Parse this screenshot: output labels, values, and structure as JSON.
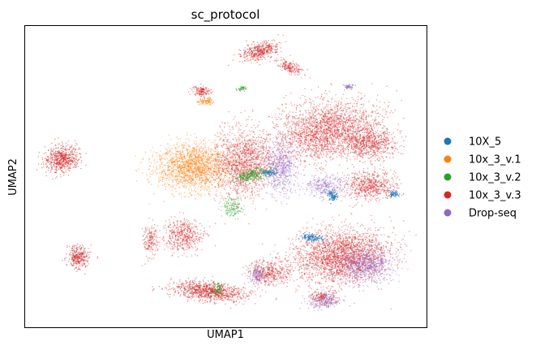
{
  "chart_data": {
    "type": "scatter",
    "title": "sc_protocol",
    "xlabel": "UMAP1",
    "ylabel": "UMAP2",
    "xticks": [],
    "yticks": [],
    "grid": false,
    "legend_position": "right",
    "series": [
      {
        "name": "10X_5",
        "color": "#1f77b4"
      },
      {
        "name": "10x_3_v.1",
        "color": "#ff7f0e"
      },
      {
        "name": "10x_3_v.2",
        "color": "#2ca02c"
      },
      {
        "name": "10x_3_v.3",
        "color": "#d62728"
      },
      {
        "name": "Drop-seq",
        "color": "#9467bd"
      }
    ]
  }
}
